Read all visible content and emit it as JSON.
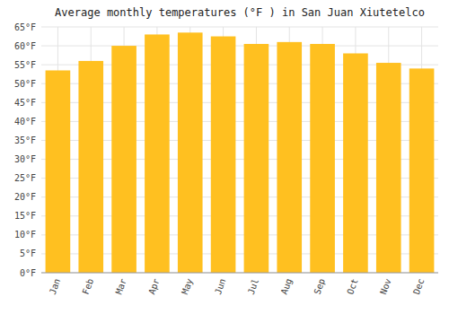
{
  "chart_data": {
    "type": "bar",
    "title": "Average monthly temperatures (°F ) in San Juan Xiutetelco",
    "categories": [
      "Jan",
      "Feb",
      "Mar",
      "Apr",
      "May",
      "Jun",
      "Jul",
      "Aug",
      "Sep",
      "Oct",
      "Nov",
      "Dec"
    ],
    "values": [
      53.5,
      56.0,
      60.0,
      63.0,
      63.5,
      62.5,
      60.5,
      61.0,
      60.5,
      58.0,
      55.5,
      54.0
    ],
    "color": "#FFC020",
    "ylim": [
      0,
      65
    ],
    "yticks": [
      {
        "value": 0,
        "label": "0°F"
      },
      {
        "value": 5,
        "label": "5°F"
      },
      {
        "value": 10,
        "label": "10°F"
      },
      {
        "value": 15,
        "label": "15°F"
      },
      {
        "value": 20,
        "label": "20°F"
      },
      {
        "value": 25,
        "label": "25°F"
      },
      {
        "value": 30,
        "label": "30°F"
      },
      {
        "value": 35,
        "label": "35°F"
      },
      {
        "value": 40,
        "label": "40°F"
      },
      {
        "value": 45,
        "label": "45°F"
      },
      {
        "value": 50,
        "label": "50°F"
      },
      {
        "value": 55,
        "label": "55°F"
      },
      {
        "value": 60,
        "label": "60°F"
      },
      {
        "value": 65,
        "label": "65°F"
      }
    ],
    "grid": true
  }
}
